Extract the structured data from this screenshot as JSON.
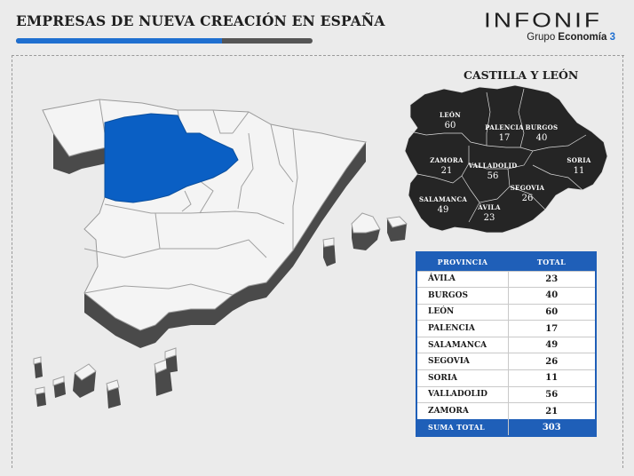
{
  "header": {
    "title": "EMPRESAS DE NUEVA CREACIÓN EN ESPAÑA",
    "accent_color": "#1f6fd0"
  },
  "logo": {
    "word": "INFONIF",
    "sub_prefix": "Grupo ",
    "sub_bold": "Economía",
    "sub_num": "3"
  },
  "inset": {
    "title": "CASTILLA Y LEÓN",
    "provinces": [
      {
        "name": "LEÓN",
        "value": "60"
      },
      {
        "name": "PALENCIA",
        "value": "17"
      },
      {
        "name": "BURGOS",
        "value": "40"
      },
      {
        "name": "ZAMORA",
        "value": "21"
      },
      {
        "name": "VALLADOLID",
        "value": "56"
      },
      {
        "name": "SORIA",
        "value": "11"
      },
      {
        "name": "SEGOVIA",
        "value": "26"
      },
      {
        "name": "SALAMANCA",
        "value": "49"
      },
      {
        "name": "ÁVILA",
        "value": "23"
      }
    ]
  },
  "table": {
    "headers": [
      "PROVINCIA",
      "TOTAL"
    ],
    "rows": [
      {
        "provincia": "ÁVILA",
        "total": "23"
      },
      {
        "provincia": "BURGOS",
        "total": "40"
      },
      {
        "provincia": "LEÓN",
        "total": "60"
      },
      {
        "provincia": "PALENCIA",
        "total": "17"
      },
      {
        "provincia": "SALAMANCA",
        "total": "49"
      },
      {
        "provincia": "SEGOVIA",
        "total": "26"
      },
      {
        "provincia": "SORIA",
        "total": "11"
      },
      {
        "provincia": "VALLADOLID",
        "total": "56"
      },
      {
        "provincia": "ZAMORA",
        "total": "21"
      }
    ],
    "total_label": "SUMA TOTAL",
    "total_value": "303"
  },
  "colors": {
    "highlight_region": "#0a5fc4",
    "region_fill": "#f4f4f4",
    "extrusion": "#4a4a4a",
    "inset_fill": "#252525"
  }
}
